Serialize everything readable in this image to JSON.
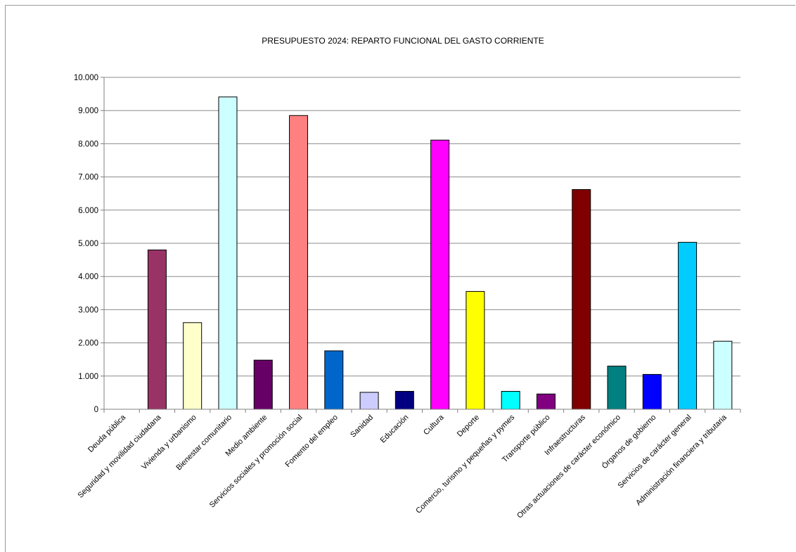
{
  "chart_data": {
    "type": "bar",
    "title": "PRESUPUESTO 2024: REPARTO FUNCIONAL DEL GASTO CORRIENTE",
    "xlabel": "",
    "ylabel": "",
    "ylim": [
      0,
      10000
    ],
    "yticks": [
      0,
      1000,
      2000,
      3000,
      4000,
      5000,
      6000,
      7000,
      8000,
      9000,
      10000
    ],
    "ytick_labels": [
      "0",
      "1.000",
      "2.000",
      "3.000",
      "4.000",
      "5.000",
      "6.000",
      "7.000",
      "8.000",
      "9.000",
      "10.000"
    ],
    "grid": true,
    "legend": "none",
    "categories": [
      "Deuda pública",
      "Seguridad y movilidad ciudadana",
      "Vivienda y urbanismo",
      "Bienestar comunitario",
      "Medio ambiente",
      "Servicios sociales y promoción social",
      "Fomento del empleo",
      "Sanidad",
      "Educación",
      "Cultura",
      "Deporte",
      "Comercio, turismo y pequeñas y pymes",
      "Transporte público",
      "Infraestructuras",
      "Otras actuaciones de carácter económico",
      "Órganos de gobierno",
      "Servicios de carácter general",
      "Administración financiera y tributaria"
    ],
    "values": [
      0,
      4800,
      2610,
      9410,
      1480,
      8850,
      1760,
      510,
      540,
      8110,
      3550,
      540,
      460,
      6620,
      1300,
      1050,
      5030,
      2050
    ],
    "colors": [
      "#993366",
      "#993366",
      "#FFFFCC",
      "#CCFFFF",
      "#660066",
      "#FF8080",
      "#0066CC",
      "#CCCCFF",
      "#000080",
      "#FF00FF",
      "#FFFF00",
      "#00FFFF",
      "#800080",
      "#800000",
      "#008080",
      "#0000FF",
      "#00CCFF",
      "#CCFFFF"
    ]
  }
}
